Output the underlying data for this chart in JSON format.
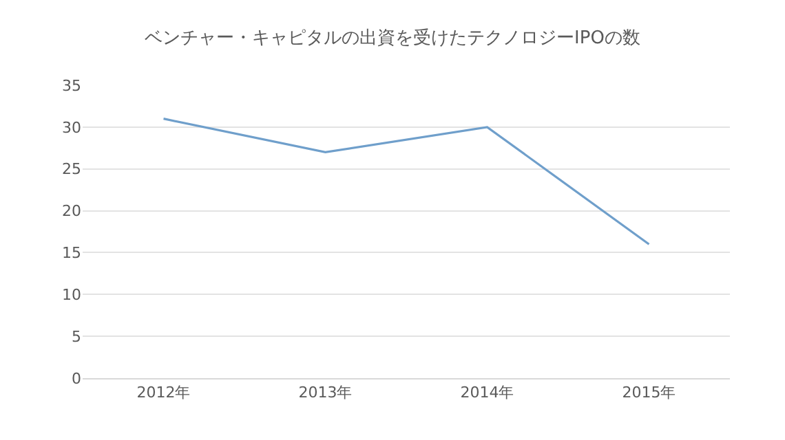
{
  "chart_data": {
    "type": "line",
    "title": "ベンチャー・キャピタルの出資を受けたテクノロジーIPOの数",
    "categories": [
      "2012年",
      "2013年",
      "2014年",
      "2015年"
    ],
    "series": [
      {
        "color": "#6f9fcb",
        "values": [
          31,
          27,
          30,
          16
        ]
      }
    ],
    "ylim": [
      0,
      35
    ],
    "yticks": [
      0,
      5,
      10,
      15,
      20,
      25,
      30,
      35
    ],
    "grid": "y",
    "legend": false,
    "marker": "none",
    "line_style": "solid"
  }
}
